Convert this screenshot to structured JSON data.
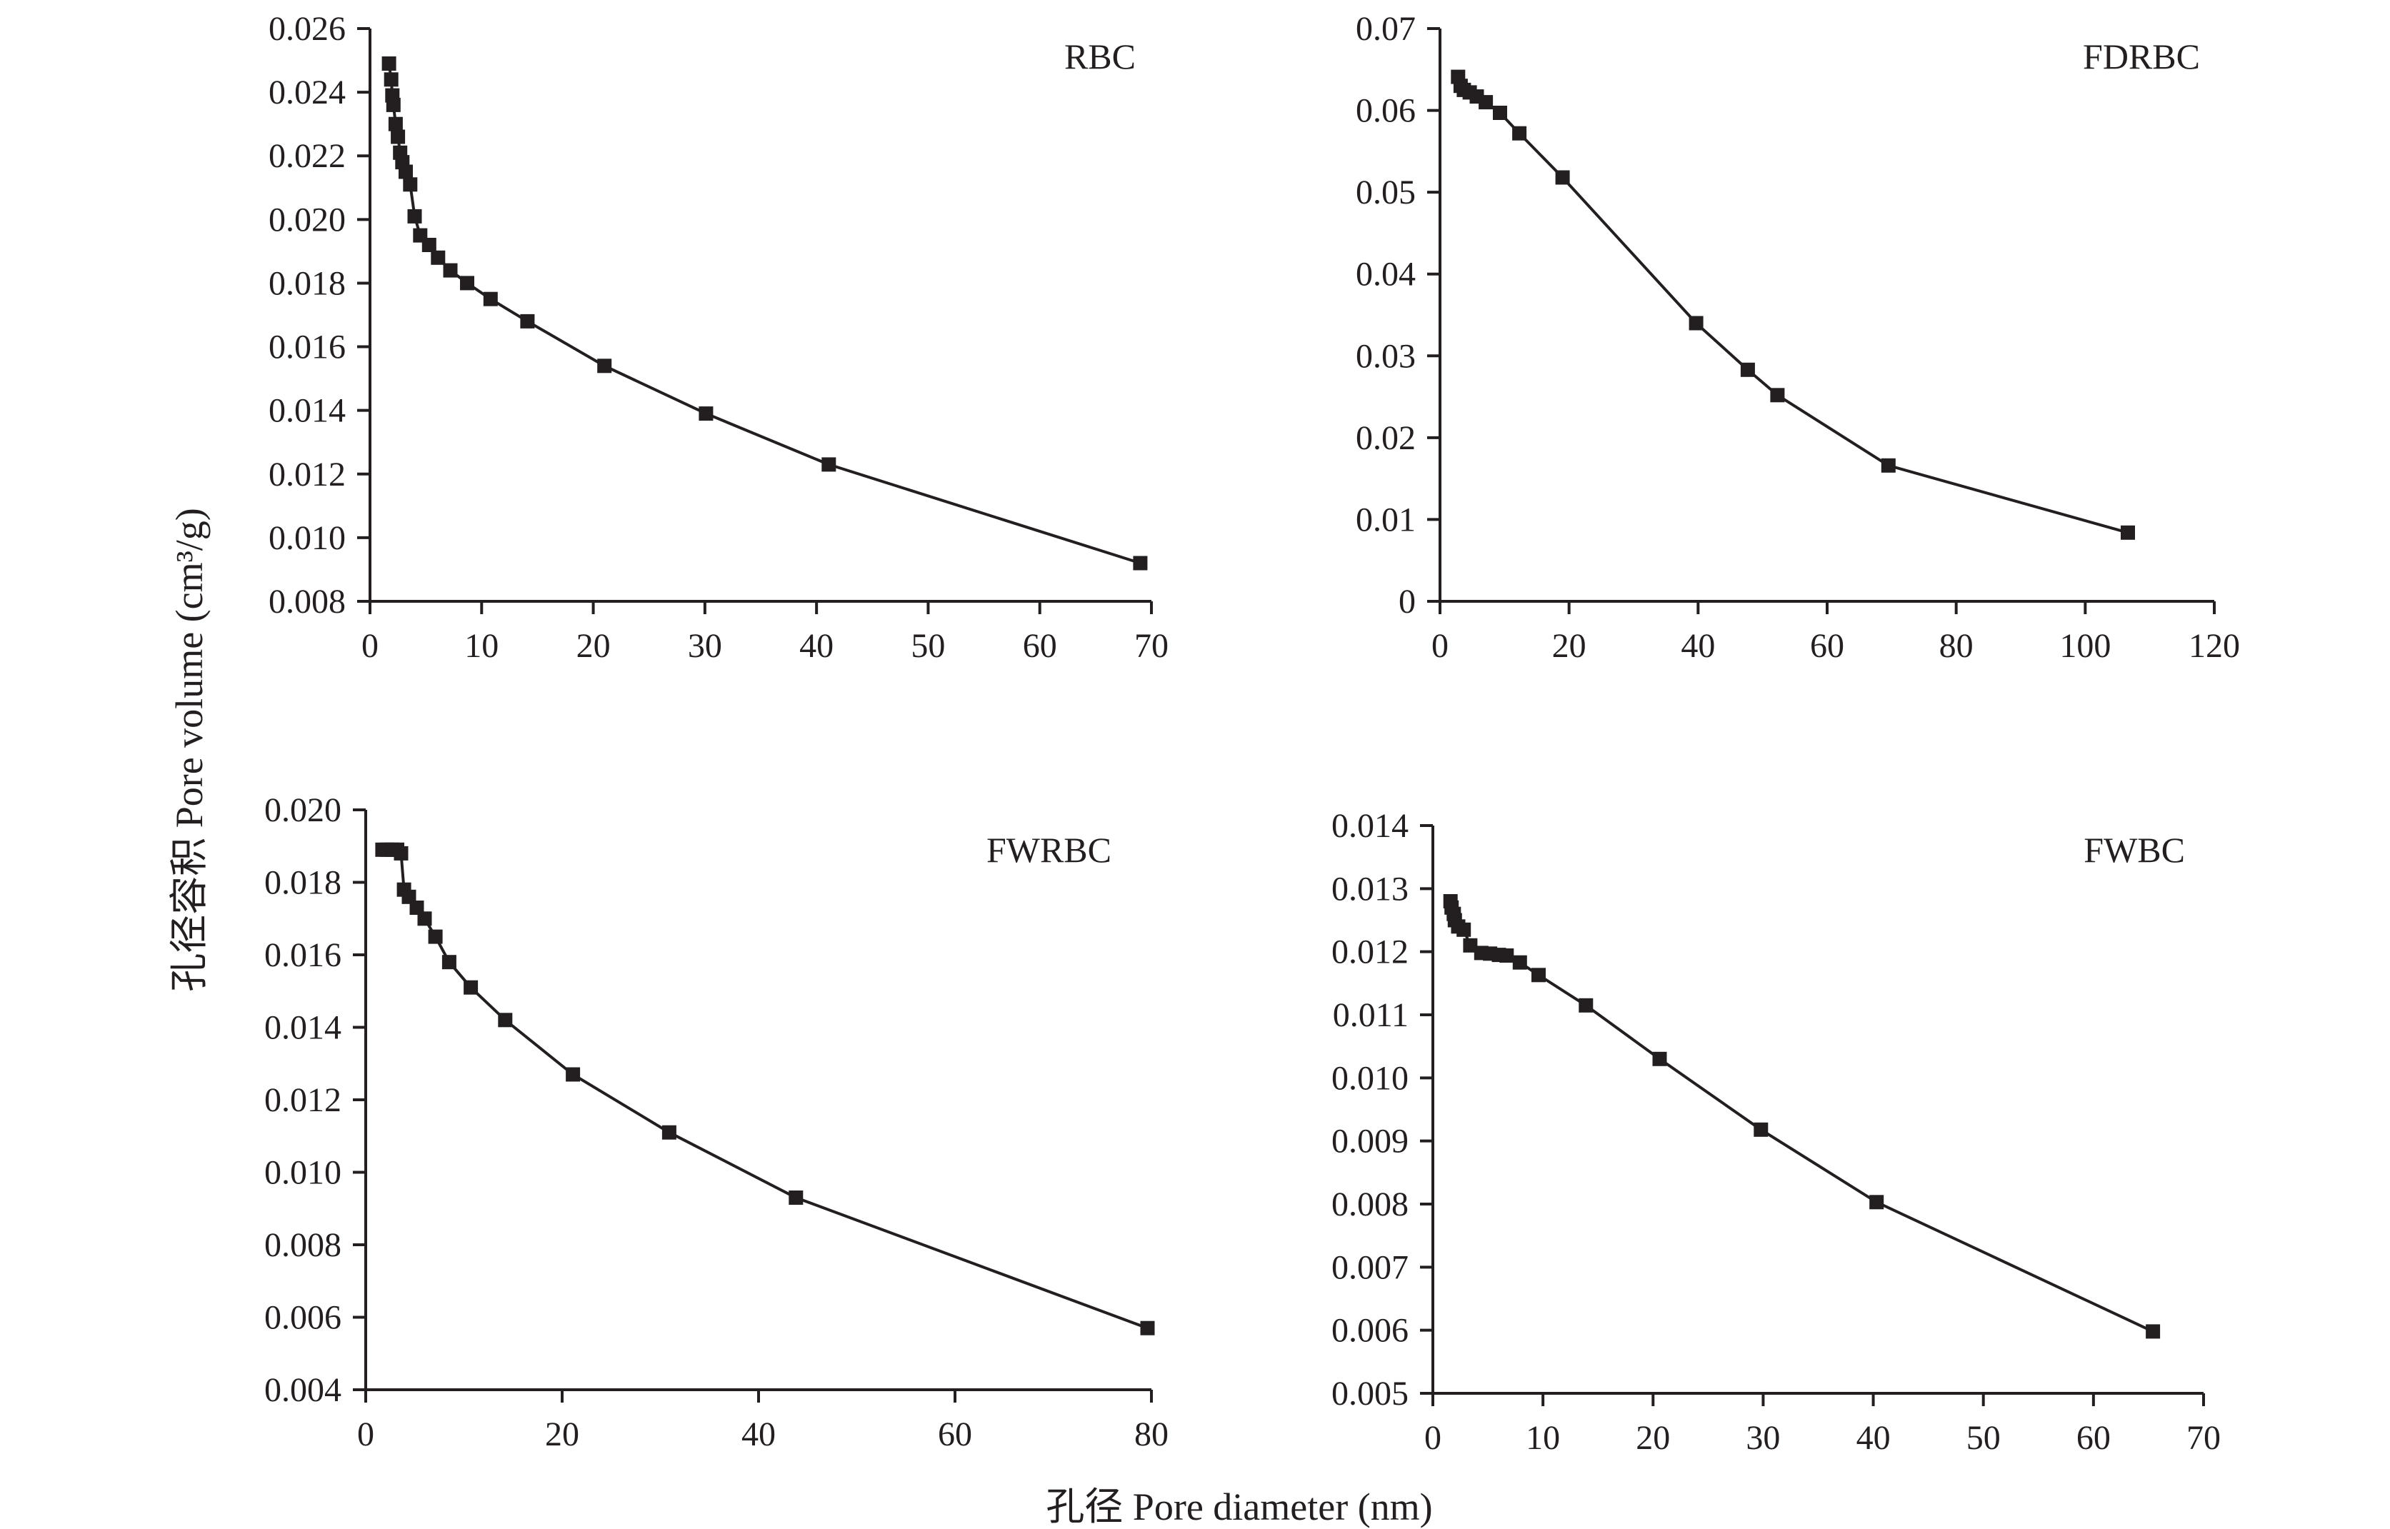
{
  "figure": {
    "ylabel": "孔径容积 Pore volume (cm³/g)",
    "xlabel": "孔径 Pore diameter (nm)"
  },
  "chart_data": [
    {
      "type": "line",
      "panel_label": "RBC",
      "xlim": [
        0,
        70
      ],
      "ylim": [
        0.008,
        0.026
      ],
      "xticks": [
        "0",
        "10",
        "20",
        "30",
        "40",
        "50",
        "60",
        "70"
      ],
      "yticks": [
        "0.008",
        "0.010",
        "0.012",
        "0.014",
        "0.016",
        "0.018",
        "0.020",
        "0.022",
        "0.024",
        "0.026"
      ],
      "series": [
        {
          "marker": "square",
          "color": "#231f20",
          "x": [
            1.7,
            1.9,
            2.0,
            2.1,
            2.3,
            2.5,
            2.7,
            2.9,
            3.2,
            3.6,
            4.0,
            4.5,
            5.3,
            6.1,
            7.2,
            8.7,
            10.8,
            14.1,
            21.0,
            30.1,
            41.1,
            69.0
          ],
          "y": [
            0.0249,
            0.0244,
            0.0239,
            0.0236,
            0.023,
            0.0226,
            0.0221,
            0.0218,
            0.0215,
            0.0211,
            0.0201,
            0.0195,
            0.0192,
            0.0188,
            0.0184,
            0.018,
            0.0175,
            0.0168,
            0.0154,
            0.0139,
            0.0123,
            0.0092
          ]
        }
      ]
    },
    {
      "type": "line",
      "panel_label": "FDRBC",
      "xlim": [
        0,
        120
      ],
      "ylim": [
        0,
        0.07
      ],
      "xticks": [
        "0",
        "20",
        "40",
        "60",
        "80",
        "100",
        "120"
      ],
      "yticks": [
        "0",
        "0.01",
        "0.02",
        "0.03",
        "0.04",
        "0.05",
        "0.06",
        "0.07"
      ],
      "series": [
        {
          "marker": "square",
          "color": "#231f20",
          "x": [
            2.8,
            3.2,
            3.7,
            4.6,
            5.7,
            7.1,
            9.3,
            12.3,
            19.0,
            39.7,
            47.7,
            52.3,
            69.5,
            106.6
          ],
          "y": [
            0.0641,
            0.063,
            0.0625,
            0.0622,
            0.0617,
            0.061,
            0.0597,
            0.0572,
            0.0518,
            0.034,
            0.0283,
            0.0252,
            0.0166,
            0.0084
          ]
        }
      ]
    },
    {
      "type": "line",
      "panel_label": "FWRBC",
      "xlim": [
        0,
        80
      ],
      "ylim": [
        0.004,
        0.02
      ],
      "xticks": [
        "0",
        "20",
        "40",
        "60",
        "80"
      ],
      "yticks": [
        "0.004",
        "0.006",
        "0.008",
        "0.010",
        "0.012",
        "0.014",
        "0.016",
        "0.018",
        "0.020"
      ],
      "series": [
        {
          "marker": "square",
          "color": "#231f20",
          "x": [
            1.7,
            2.2,
            2.7,
            3.2,
            3.6,
            3.9,
            4.4,
            5.2,
            6.0,
            7.1,
            8.5,
            10.7,
            14.2,
            21.1,
            30.9,
            43.8,
            79.6
          ],
          "y": [
            0.0189,
            0.0189,
            0.0189,
            0.0189,
            0.0188,
            0.0178,
            0.0176,
            0.0173,
            0.017,
            0.0165,
            0.0158,
            0.0151,
            0.0142,
            0.0127,
            0.0111,
            0.0093,
            0.0057
          ]
        }
      ]
    },
    {
      "type": "line",
      "panel_label": "FWBC",
      "xlim": [
        0,
        70
      ],
      "ylim": [
        0.005,
        0.014
      ],
      "xticks": [
        "0",
        "10",
        "20",
        "30",
        "40",
        "50",
        "60",
        "70"
      ],
      "yticks": [
        "0.005",
        "0.006",
        "0.007",
        "0.008",
        "0.009",
        "0.010",
        "0.011",
        "0.012",
        "0.013",
        "0.014"
      ],
      "series": [
        {
          "marker": "square",
          "color": "#231f20",
          "x": [
            1.6,
            1.7,
            1.9,
            2.0,
            2.3,
            2.8,
            3.4,
            4.4,
            5.2,
            6.0,
            6.7,
            7.9,
            9.6,
            13.9,
            20.6,
            29.8,
            40.3,
            65.4
          ],
          "y": [
            0.0128,
            0.0127,
            0.0126,
            0.0125,
            0.0124,
            0.01235,
            0.0121,
            0.01198,
            0.01197,
            0.01195,
            0.01194,
            0.01183,
            0.01163,
            0.01115,
            0.0103,
            0.00918,
            0.00803,
            0.00598
          ]
        }
      ]
    }
  ]
}
